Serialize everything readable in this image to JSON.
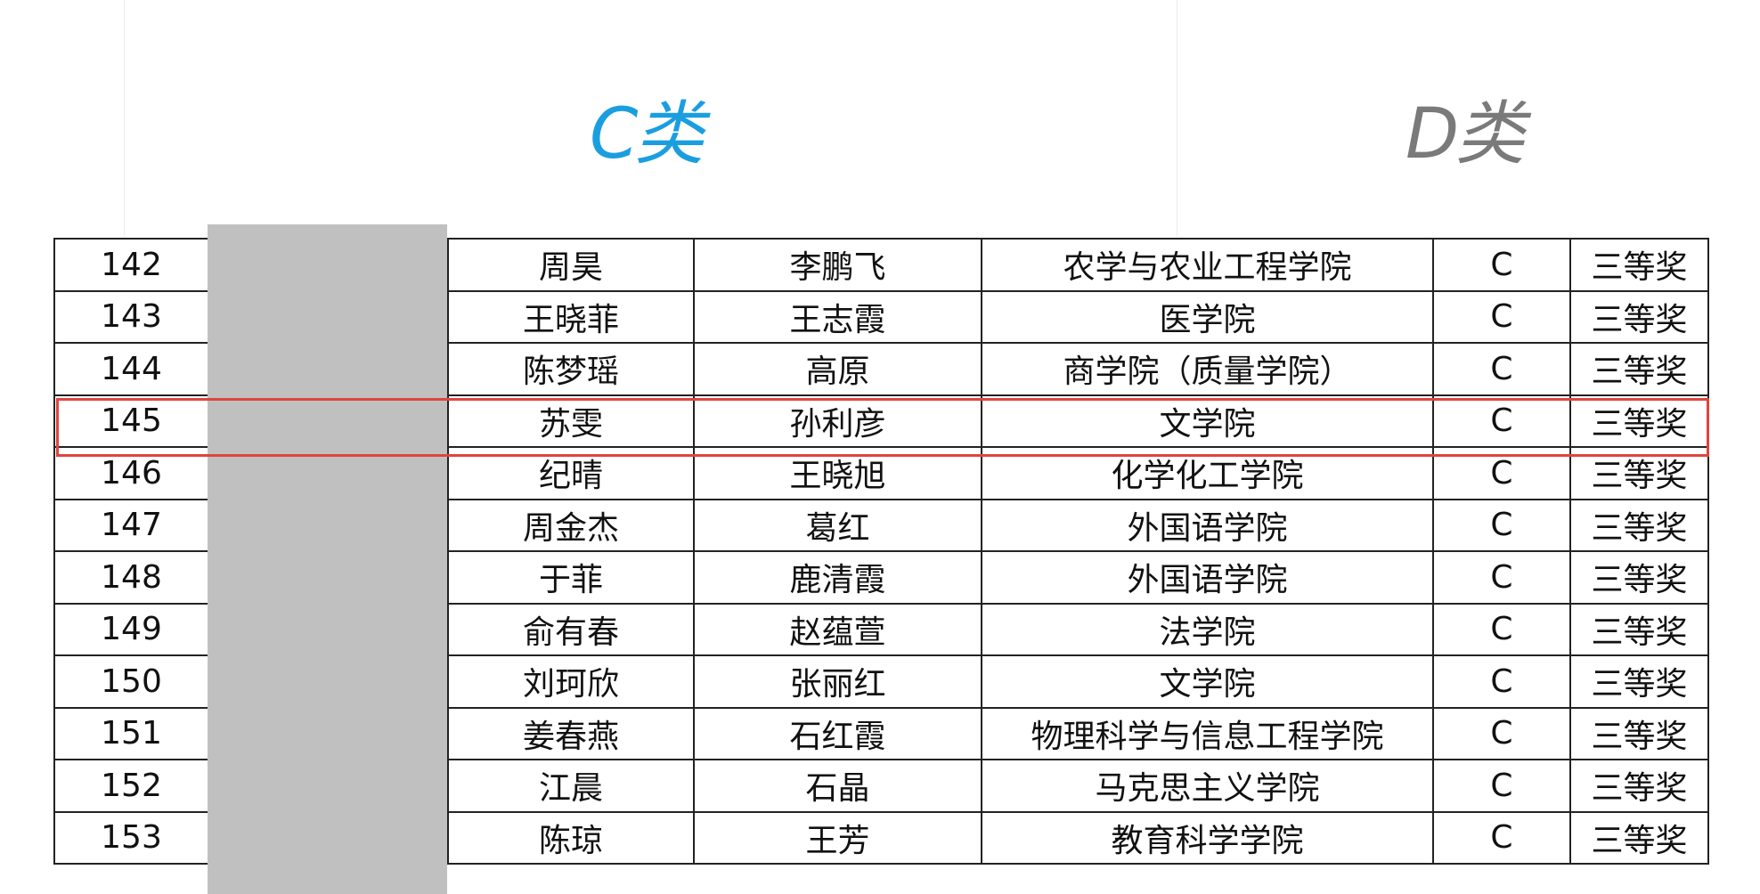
{
  "header": {
    "category_c": "C类",
    "category_d": "D类",
    "category_c_color": "#1a9ee0",
    "category_d_color": "#7a7a7a"
  },
  "highlight_color": "#e0443e",
  "table": {
    "rows": [
      {
        "no": "142",
        "name1": "周昊",
        "name2": "李鹏飞",
        "college": "农学与农业工程学院",
        "category": "C",
        "award": "三等奖"
      },
      {
        "no": "143",
        "name1": "王晓菲",
        "name2": "王志霞",
        "college": "医学院",
        "category": "C",
        "award": "三等奖"
      },
      {
        "no": "144",
        "name1": "陈梦瑶",
        "name2": "高原",
        "college": "商学院（质量学院）",
        "category": "C",
        "award": "三等奖"
      },
      {
        "no": "145",
        "name1": "苏雯",
        "name2": "孙利彦",
        "college": "文学院",
        "category": "C",
        "award": "三等奖",
        "highlighted": true
      },
      {
        "no": "146",
        "name1": "纪晴",
        "name2": "王晓旭",
        "college": "化学化工学院",
        "category": "C",
        "award": "三等奖"
      },
      {
        "no": "147",
        "name1": "周金杰",
        "name2": "葛红",
        "college": "外国语学院",
        "category": "C",
        "award": "三等奖"
      },
      {
        "no": "148",
        "name1": "于菲",
        "name2": "鹿清霞",
        "college": "外国语学院",
        "category": "C",
        "award": "三等奖"
      },
      {
        "no": "149",
        "name1": "俞有春",
        "name2": "赵蕴萱",
        "college": "法学院",
        "category": "C",
        "award": "三等奖"
      },
      {
        "no": "150",
        "name1": "刘珂欣",
        "name2": "张丽红",
        "college": "文学院",
        "category": "C",
        "award": "三等奖"
      },
      {
        "no": "151",
        "name1": "姜春燕",
        "name2": "石红霞",
        "college": "物理科学与信息工程学院",
        "category": "C",
        "award": "三等奖"
      },
      {
        "no": "152",
        "name1": "江晨",
        "name2": "石晶",
        "college": "马克思主义学院",
        "category": "C",
        "award": "三等奖"
      },
      {
        "no": "153",
        "name1": "陈琼",
        "name2": "王芳",
        "college": "教育科学学院",
        "category": "C",
        "award": "三等奖"
      }
    ]
  }
}
